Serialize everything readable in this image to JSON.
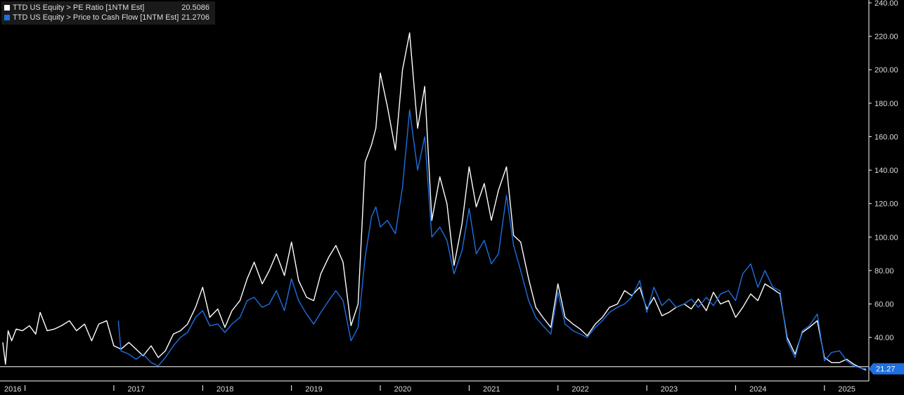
{
  "legend": [
    {
      "label": "TTD US Equity > PE Ratio [1NTM Est]",
      "value": "20.5086",
      "color": "#ffffff"
    },
    {
      "label": "TTD US Equity > Price to Cash Flow [1NTM Est]",
      "value": "21.2706",
      "color": "#1e6fe0"
    }
  ],
  "last_value_tag": "21.27",
  "colors": {
    "background": "#000000",
    "axis": "#ffffff",
    "pe": "#ffffff",
    "pcf": "#1e6fe0",
    "tag": "#1e6fe0"
  },
  "chart_data": {
    "type": "line",
    "x_range": [
      2016.0,
      2025.75
    ],
    "ylim": [
      14,
      240
    ],
    "y_ticks": [
      "40.00",
      "60.00",
      "80.00",
      "100.00",
      "120.00",
      "140.00",
      "160.00",
      "180.00",
      "200.00",
      "220.00",
      "240.00"
    ],
    "x_ticks": [
      "2016",
      "2017",
      "2018",
      "2019",
      "2020",
      "2021",
      "2022",
      "2023",
      "2024",
      "2025"
    ],
    "reference_line": 22.5,
    "grid": false,
    "legend_position": "top-left",
    "series": [
      {
        "name": "TTD US Equity > PE Ratio [1NTM Est]",
        "color": "#ffffff",
        "x": [
          2016.0,
          2016.03,
          2016.06,
          2016.1,
          2016.15,
          2016.22,
          2016.3,
          2016.37,
          2016.42,
          2016.5,
          2016.58,
          2016.66,
          2016.75,
          2016.83,
          2016.92,
          2017.0,
          2017.08,
          2017.17,
          2017.25,
          2017.33,
          2017.42,
          2017.5,
          2017.58,
          2017.67,
          2017.75,
          2017.83,
          2017.92,
          2018.0,
          2018.08,
          2018.17,
          2018.25,
          2018.33,
          2018.42,
          2018.5,
          2018.58,
          2018.67,
          2018.75,
          2018.83,
          2018.92,
          2019.0,
          2019.08,
          2019.17,
          2019.25,
          2019.33,
          2019.42,
          2019.5,
          2019.58,
          2019.67,
          2019.75,
          2019.83,
          2019.92,
          2020.0,
          2020.08,
          2020.15,
          2020.2,
          2020.25,
          2020.33,
          2020.42,
          2020.5,
          2020.58,
          2020.67,
          2020.75,
          2020.83,
          2020.92,
          2021.0,
          2021.08,
          2021.17,
          2021.25,
          2021.33,
          2021.42,
          2021.5,
          2021.58,
          2021.67,
          2021.75,
          2021.83,
          2021.92,
          2022.0,
          2022.08,
          2022.17,
          2022.25,
          2022.33,
          2022.42,
          2022.5,
          2022.58,
          2022.67,
          2022.75,
          2022.83,
          2022.92,
          2023.0,
          2023.08,
          2023.17,
          2023.25,
          2023.33,
          2023.42,
          2023.5,
          2023.58,
          2023.67,
          2023.75,
          2023.83,
          2023.92,
          2024.0,
          2024.08,
          2024.17,
          2024.25,
          2024.33,
          2024.42,
          2024.5,
          2024.58,
          2024.67,
          2024.75,
          2024.83,
          2024.92,
          2025.0,
          2025.08,
          2025.17,
          2025.25,
          2025.33,
          2025.42,
          2025.5,
          2025.58,
          2025.67,
          2025.72
        ],
        "values": [
          37,
          24,
          44,
          38,
          45,
          44,
          47,
          42,
          55,
          44,
          45,
          47,
          50,
          44,
          48,
          38,
          48,
          50,
          35,
          33,
          37,
          33,
          29,
          35,
          28,
          32,
          42,
          44,
          48,
          58,
          70,
          52,
          57,
          46,
          56,
          62,
          75,
          85,
          72,
          80,
          90,
          77,
          97,
          74,
          64,
          62,
          78,
          88,
          95,
          85,
          47,
          60,
          145,
          155,
          165,
          198,
          178,
          152,
          200,
          222,
          165,
          190,
          110,
          136,
          120,
          83,
          108,
          142,
          118,
          132,
          110,
          128,
          142,
          101,
          97,
          75,
          58,
          52,
          46,
          72,
          52,
          48,
          45,
          41,
          48,
          52,
          58,
          60,
          68,
          65,
          70,
          57,
          64,
          53,
          55,
          58,
          60,
          57,
          63,
          56,
          67,
          60,
          62,
          52,
          58,
          66,
          62,
          72,
          69,
          66,
          40,
          30,
          43,
          46,
          50,
          28,
          25,
          25,
          27,
          24,
          21.5,
          20.5
        ]
      },
      {
        "name": "TTD US Equity > Price to Cash Flow [1NTM Est]",
        "color": "#1e6fe0",
        "x": [
          2017.3,
          2017.33,
          2017.42,
          2017.5,
          2017.58,
          2017.67,
          2017.75,
          2017.83,
          2017.92,
          2018.0,
          2018.08,
          2018.17,
          2018.25,
          2018.33,
          2018.42,
          2018.5,
          2018.58,
          2018.67,
          2018.75,
          2018.83,
          2018.92,
          2019.0,
          2019.08,
          2019.17,
          2019.25,
          2019.33,
          2019.42,
          2019.5,
          2019.58,
          2019.67,
          2019.75,
          2019.83,
          2019.92,
          2020.0,
          2020.08,
          2020.15,
          2020.2,
          2020.25,
          2020.33,
          2020.42,
          2020.5,
          2020.58,
          2020.67,
          2020.75,
          2020.83,
          2020.92,
          2021.0,
          2021.08,
          2021.17,
          2021.25,
          2021.33,
          2021.42,
          2021.5,
          2021.58,
          2021.67,
          2021.75,
          2021.83,
          2021.92,
          2022.0,
          2022.08,
          2022.17,
          2022.25,
          2022.33,
          2022.42,
          2022.5,
          2022.58,
          2022.67,
          2022.75,
          2022.83,
          2022.92,
          2023.0,
          2023.08,
          2023.17,
          2023.25,
          2023.33,
          2023.42,
          2023.5,
          2023.58,
          2023.67,
          2023.75,
          2023.83,
          2023.92,
          2024.0,
          2024.08,
          2024.17,
          2024.25,
          2024.33,
          2024.42,
          2024.5,
          2024.58,
          2024.67,
          2024.75,
          2024.83,
          2024.92,
          2025.0,
          2025.08,
          2025.17,
          2025.25,
          2025.33,
          2025.42,
          2025.5,
          2025.58,
          2025.67,
          2025.72
        ],
        "values": [
          50,
          32,
          30,
          27,
          30,
          25,
          23,
          28,
          35,
          40,
          43,
          52,
          56,
          47,
          48,
          43,
          48,
          52,
          62,
          64,
          58,
          60,
          68,
          56,
          75,
          62,
          54,
          48,
          55,
          62,
          68,
          62,
          38,
          46,
          88,
          112,
          118,
          106,
          110,
          102,
          130,
          176,
          140,
          160,
          100,
          106,
          98,
          78,
          92,
          117,
          90,
          98,
          84,
          90,
          125,
          95,
          80,
          62,
          52,
          47,
          42,
          67,
          48,
          44,
          42,
          40,
          46,
          50,
          55,
          58,
          60,
          64,
          74,
          55,
          70,
          59,
          63,
          58,
          60,
          63,
          58,
          64,
          59,
          66,
          68,
          62,
          78,
          84,
          70,
          80,
          70,
          68,
          38,
          28,
          44,
          47,
          54,
          26,
          31,
          32,
          26,
          23,
          21.5,
          21.27
        ]
      }
    ]
  }
}
